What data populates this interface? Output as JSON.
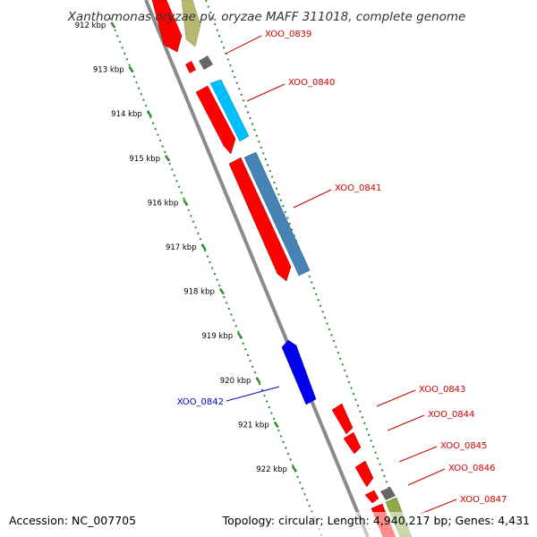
{
  "title": "Xanthomonas oryzae pv. oryzae MAFF 311018, complete genome",
  "footer": {
    "accession": "Accession: NC_007705",
    "topology": "Topology: circular; Length: 4,940,217 bp; Genes: 4,431"
  },
  "colors": {
    "backbone": "#8a8a8a",
    "ruler": "#2e8b2e",
    "gene_red": "#ff0000",
    "gene_blue": "#0000ee",
    "gene_cyan": "#00bfff",
    "gene_steel": "#4682b4",
    "gene_olive": "#b8b870",
    "gene_olive_green": "#8fa84a",
    "gene_gray": "#666666",
    "label_red": "#cc0000",
    "label_blue": "#0000cc"
  },
  "scale": {
    "unit": "kbp",
    "ticks": [
      {
        "kbp": 912,
        "label": "912 kbp"
      },
      {
        "kbp": 913,
        "label": "913 kbp"
      },
      {
        "kbp": 914,
        "label": "914 kbp"
      },
      {
        "kbp": 915,
        "label": "915 kbp"
      },
      {
        "kbp": 916,
        "label": "916 kbp"
      },
      {
        "kbp": 917,
        "label": "917 kbp"
      },
      {
        "kbp": 918,
        "label": "918 kbp"
      },
      {
        "kbp": 919,
        "label": "919 kbp"
      },
      {
        "kbp": 920,
        "label": "920 kbp"
      },
      {
        "kbp": 921,
        "label": "921 kbp"
      },
      {
        "kbp": 922,
        "label": "922 kbp"
      }
    ]
  },
  "gene_labels": [
    {
      "name": "XOO_0839",
      "color": "#cc0000"
    },
    {
      "name": "XOO_0840",
      "color": "#cc0000"
    },
    {
      "name": "XOO_0841",
      "color": "#cc0000"
    },
    {
      "name": "XOO_0842",
      "color": "#0000cc"
    },
    {
      "name": "XOO_0843",
      "color": "#cc0000"
    },
    {
      "name": "XOO_0844",
      "color": "#cc0000"
    },
    {
      "name": "XOO_0845",
      "color": "#cc0000"
    },
    {
      "name": "XOO_0846",
      "color": "#cc0000"
    },
    {
      "name": "XOO_0847",
      "color": "#cc0000"
    }
  ]
}
